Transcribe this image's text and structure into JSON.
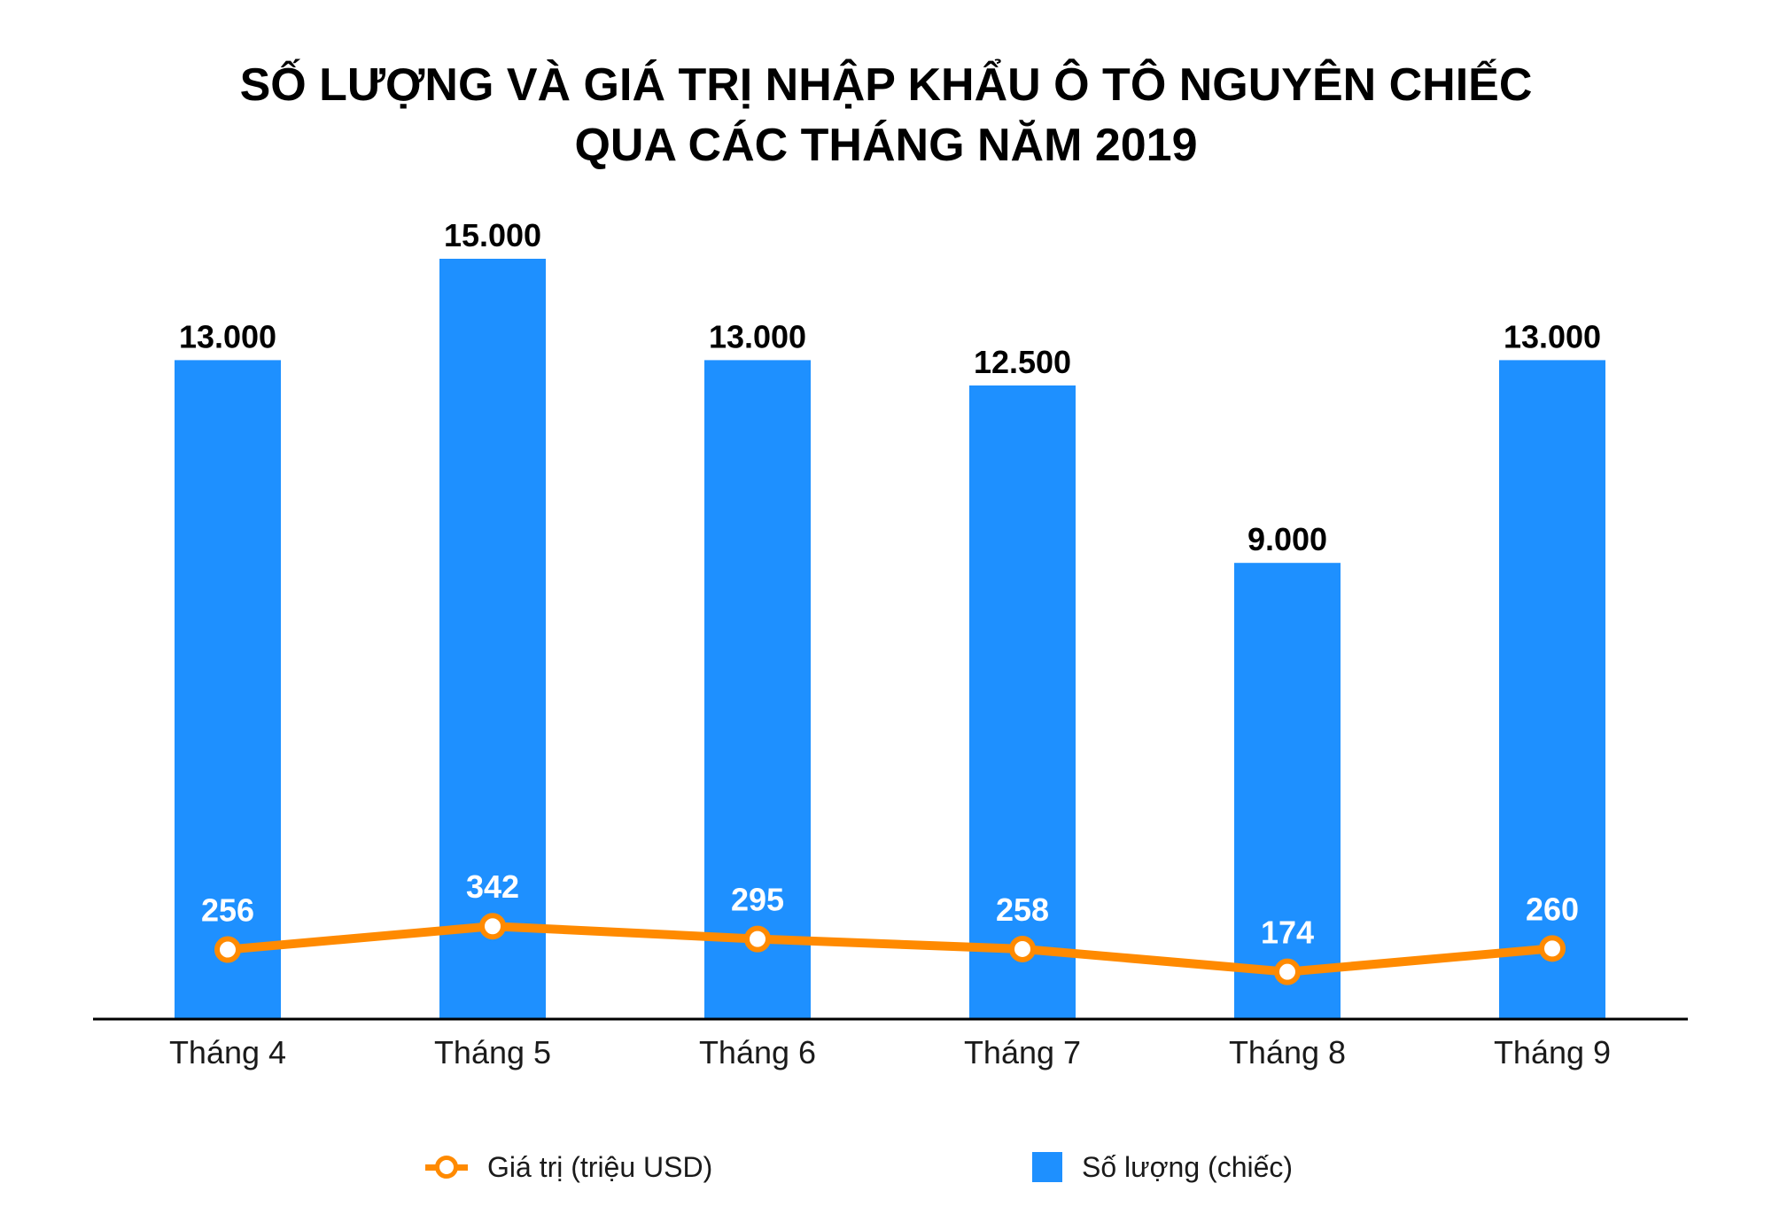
{
  "title_line1": "SỐ LƯỢNG VÀ GIÁ TRỊ NHẬP KHẨU Ô TÔ NGUYÊN CHIẾC",
  "title_line2": "QUA CÁC THÁNG NĂM 2019",
  "legend": {
    "line_label": "Giá trị (triệu USD)",
    "bar_label": "Số lượng (chiếc)"
  },
  "colors": {
    "bar": "#1e90ff",
    "line": "#ff8a00",
    "axis": "#000000"
  },
  "chart_data": {
    "type": "bar",
    "categories": [
      "Tháng 4",
      "Tháng 5",
      "Tháng 6",
      "Tháng 7",
      "Tháng 8",
      "Tháng 9"
    ],
    "series": [
      {
        "name": "Số lượng (chiếc)",
        "type": "bar",
        "values": [
          13000,
          15000,
          13000,
          12500,
          9000,
          13000
        ],
        "labels": [
          "13.000",
          "15.000",
          "13.000",
          "12.500",
          "9.000",
          "13.000"
        ]
      },
      {
        "name": "Giá trị (triệu USD)",
        "type": "line",
        "values": [
          256,
          342,
          295,
          258,
          174,
          260
        ],
        "labels": [
          "256",
          "342",
          "295",
          "258",
          "174",
          "260"
        ]
      }
    ],
    "bar_ylim": [
      0,
      15000
    ],
    "line_ylim": [
      0,
      2800
    ],
    "grid": false,
    "legend_position": "bottom"
  }
}
